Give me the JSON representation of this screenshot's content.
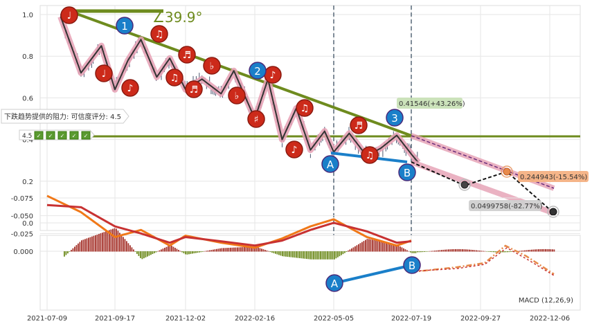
{
  "colors": {
    "trend_green": "#6e8b1e",
    "line_dark": "#333333",
    "pink_band": "#e6a0b4",
    "wave_red": "#cc2a1a",
    "wave_blue": "#1a7fc9",
    "macd_pos": "#a5322a",
    "macd_neg": "#6e8b1e",
    "dif": "#f07818",
    "dea": "#c83232",
    "proj_dashed": "#e68a4a",
    "resistance_box": "#c6e0b4",
    "target_box": "#f4b183",
    "low_box": "#d0d0d0"
  },
  "price_panel": {
    "y_ticks": [
      "1.0",
      "0.8",
      "0.6",
      "0.4",
      "0.2",
      "0.0"
    ],
    "angle_label": "∠39.9°",
    "resistance_label": "下跌趋势提供的阻力: 可信度评分: 4.5",
    "rating_value": "4.5",
    "rating_icon_count": 5,
    "callouts": {
      "top": "0.41546(+43.26%)",
      "target": "0.244943(-15.54%)",
      "low": "0.0499758(-82.77%)"
    },
    "wave_points": {
      "A1": "A",
      "B1": "B",
      "n1": "1",
      "n2": "2",
      "n3": "3"
    }
  },
  "macd_panel": {
    "y_ticks": [
      "0.000",
      "-0.025",
      "-0.050",
      "-0.075"
    ],
    "label": "MACD (12,26,9)",
    "A_label": "A",
    "B_label": "B"
  },
  "x_ticks": [
    "2021-07-09",
    "2021-09-17",
    "2021-12-02",
    "2022-02-16",
    "2022-05-05",
    "2022-07-19",
    "2022-09-27",
    "2022-12-06"
  ],
  "chart_data": {
    "type": "line",
    "title": "",
    "xlabel": "",
    "ylabel": "",
    "ylim": [
      -0.03,
      1.05
    ],
    "x": [
      "2021-07-23",
      "2021-08-13",
      "2021-09-03",
      "2021-09-17",
      "2021-10-01",
      "2021-10-15",
      "2021-11-01",
      "2021-11-15",
      "2021-12-02",
      "2021-12-20",
      "2022-01-10",
      "2022-01-24",
      "2022-02-16",
      "2022-03-01",
      "2022-03-15",
      "2022-03-29",
      "2022-04-12",
      "2022-04-26",
      "2022-05-05",
      "2022-05-20",
      "2022-06-06",
      "2022-06-20",
      "2022-07-05",
      "2022-07-19",
      "2022-07-26"
    ],
    "series": [
      {
        "values": [
          0.99,
          0.72,
          0.85,
          0.64,
          0.78,
          0.88,
          0.7,
          0.79,
          0.64,
          0.69,
          0.62,
          0.73,
          0.5,
          0.69,
          0.4,
          0.55,
          0.35,
          0.44,
          0.34,
          0.43,
          0.32,
          0.36,
          0.42,
          0.33,
          0.29
        ]
      }
    ],
    "macd": {
      "x": [
        "2021-07-09",
        "2021-08-13",
        "2021-09-17",
        "2021-10-15",
        "2021-11-15",
        "2021-12-02",
        "2022-01-10",
        "2022-02-16",
        "2022-03-15",
        "2022-04-12",
        "2022-05-05",
        "2022-06-06",
        "2022-07-05",
        "2022-07-19"
      ],
      "dif": [
        -0.078,
        -0.055,
        -0.02,
        -0.03,
        -0.008,
        -0.022,
        -0.012,
        -0.005,
        -0.018,
        -0.035,
        -0.045,
        -0.02,
        -0.008,
        -0.015
      ],
      "dea": [
        -0.065,
        -0.062,
        -0.035,
        -0.025,
        -0.012,
        -0.02,
        -0.014,
        -0.008,
        -0.015,
        -0.03,
        -0.04,
        -0.028,
        -0.012,
        -0.014
      ],
      "ylim": [
        -0.08,
        0.01
      ]
    }
  }
}
